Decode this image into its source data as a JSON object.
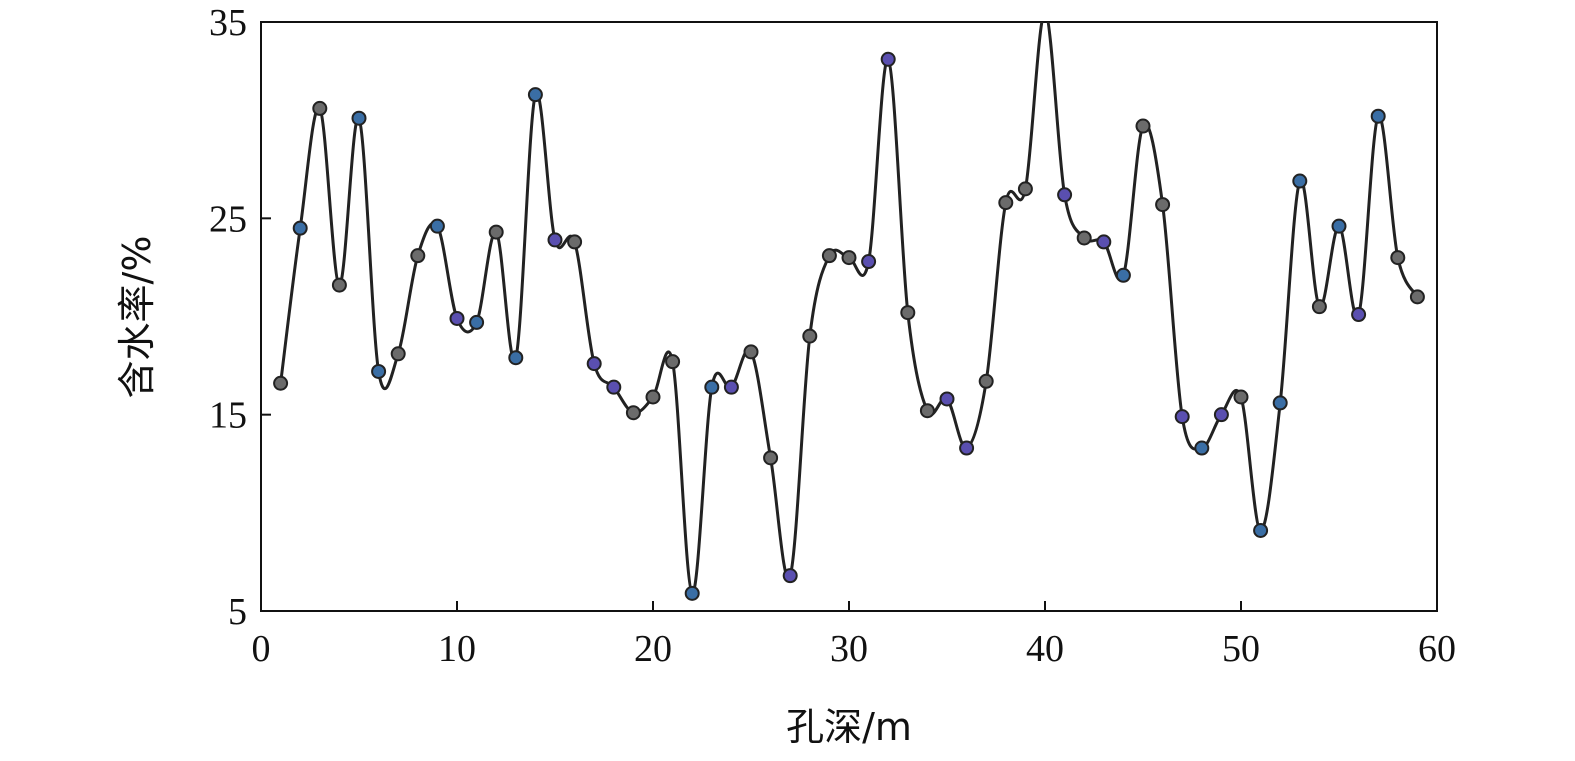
{
  "chart_data": {
    "type": "line",
    "title": "",
    "xlabel": "孔深/m",
    "ylabel": "含水率/%",
    "xlim": [
      0,
      60
    ],
    "ylim": [
      5,
      35
    ],
    "xticks": [
      0,
      10,
      20,
      30,
      40,
      50,
      60
    ],
    "yticks": [
      5,
      15,
      25,
      35
    ],
    "grid": false,
    "series": [
      {
        "line_color": "#222222",
        "points": [
          {
            "x": 1,
            "y": 16.6,
            "color": "#6b6b6b"
          },
          {
            "x": 2,
            "y": 24.5,
            "color": "#3a6ea5"
          },
          {
            "x": 3,
            "y": 30.6,
            "color": "#6b6b6b"
          },
          {
            "x": 4,
            "y": 21.6,
            "color": "#6b6b6b"
          },
          {
            "x": 5,
            "y": 30.1,
            "color": "#3a6ea5"
          },
          {
            "x": 6,
            "y": 17.2,
            "color": "#3a6ea5"
          },
          {
            "x": 7,
            "y": 18.1,
            "color": "#6b6b6b"
          },
          {
            "x": 8,
            "y": 23.1,
            "color": "#6b6b6b"
          },
          {
            "x": 9,
            "y": 24.6,
            "color": "#3a6ea5"
          },
          {
            "x": 10,
            "y": 19.9,
            "color": "#5a4fb0"
          },
          {
            "x": 11,
            "y": 19.7,
            "color": "#3a6ea5"
          },
          {
            "x": 12,
            "y": 24.3,
            "color": "#6b6b6b"
          },
          {
            "x": 13,
            "y": 17.9,
            "color": "#3a6ea5"
          },
          {
            "x": 14,
            "y": 31.3,
            "color": "#3a6ea5"
          },
          {
            "x": 15,
            "y": 23.9,
            "color": "#5a4fb0"
          },
          {
            "x": 16,
            "y": 23.8,
            "color": "#6b6b6b"
          },
          {
            "x": 17,
            "y": 17.6,
            "color": "#5a4fb0"
          },
          {
            "x": 18,
            "y": 16.4,
            "color": "#5a4fb0"
          },
          {
            "x": 19,
            "y": 15.1,
            "color": "#6b6b6b"
          },
          {
            "x": 20,
            "y": 15.9,
            "color": "#6b6b6b"
          },
          {
            "x": 21,
            "y": 17.7,
            "color": "#6b6b6b"
          },
          {
            "x": 22,
            "y": 5.9,
            "color": "#3a6ea5"
          },
          {
            "x": 23,
            "y": 16.4,
            "color": "#3a6ea5"
          },
          {
            "x": 24,
            "y": 16.4,
            "color": "#5a4fb0"
          },
          {
            "x": 25,
            "y": 18.2,
            "color": "#6b6b6b"
          },
          {
            "x": 26,
            "y": 12.8,
            "color": "#6b6b6b"
          },
          {
            "x": 27,
            "y": 6.8,
            "color": "#5a4fb0"
          },
          {
            "x": 28,
            "y": 19.0,
            "color": "#6b6b6b"
          },
          {
            "x": 29,
            "y": 23.1,
            "color": "#6b6b6b"
          },
          {
            "x": 30,
            "y": 23.0,
            "color": "#6b6b6b"
          },
          {
            "x": 31,
            "y": 22.8,
            "color": "#5a4fb0"
          },
          {
            "x": 32,
            "y": 33.1,
            "color": "#5a4fb0"
          },
          {
            "x": 33,
            "y": 20.2,
            "color": "#6b6b6b"
          },
          {
            "x": 34,
            "y": 15.2,
            "color": "#6b6b6b"
          },
          {
            "x": 35,
            "y": 15.8,
            "color": "#5a4fb0"
          },
          {
            "x": 36,
            "y": 13.3,
            "color": "#5a4fb0"
          },
          {
            "x": 37,
            "y": 16.7,
            "color": "#6b6b6b"
          },
          {
            "x": 38,
            "y": 25.8,
            "color": "#6b6b6b"
          },
          {
            "x": 39,
            "y": 26.5,
            "color": "#6b6b6b"
          },
          {
            "x": 40,
            "y": 35.5,
            "color": "#6b6b6b"
          },
          {
            "x": 41,
            "y": 26.2,
            "color": "#5a4fb0"
          },
          {
            "x": 42,
            "y": 24.0,
            "color": "#6b6b6b"
          },
          {
            "x": 43,
            "y": 23.8,
            "color": "#5a4fb0"
          },
          {
            "x": 44,
            "y": 22.1,
            "color": "#3a6ea5"
          },
          {
            "x": 45,
            "y": 29.7,
            "color": "#6b6b6b"
          },
          {
            "x": 46,
            "y": 25.7,
            "color": "#6b6b6b"
          },
          {
            "x": 47,
            "y": 14.9,
            "color": "#5a4fb0"
          },
          {
            "x": 48,
            "y": 13.3,
            "color": "#3a6ea5"
          },
          {
            "x": 49,
            "y": 15.0,
            "color": "#5a4fb0"
          },
          {
            "x": 50,
            "y": 15.9,
            "color": "#6b6b6b"
          },
          {
            "x": 51,
            "y": 9.1,
            "color": "#3a6ea5"
          },
          {
            "x": 52,
            "y": 15.6,
            "color": "#3a6ea5"
          },
          {
            "x": 53,
            "y": 26.9,
            "color": "#3a6ea5"
          },
          {
            "x": 54,
            "y": 20.5,
            "color": "#6b6b6b"
          },
          {
            "x": 55,
            "y": 24.6,
            "color": "#3a6ea5"
          },
          {
            "x": 56,
            "y": 20.1,
            "color": "#5a4fb0"
          },
          {
            "x": 57,
            "y": 30.2,
            "color": "#3a6ea5"
          },
          {
            "x": 58,
            "y": 23.0,
            "color": "#6b6b6b"
          },
          {
            "x": 59,
            "y": 21.0,
            "color": "#6b6b6b"
          }
        ]
      }
    ]
  }
}
